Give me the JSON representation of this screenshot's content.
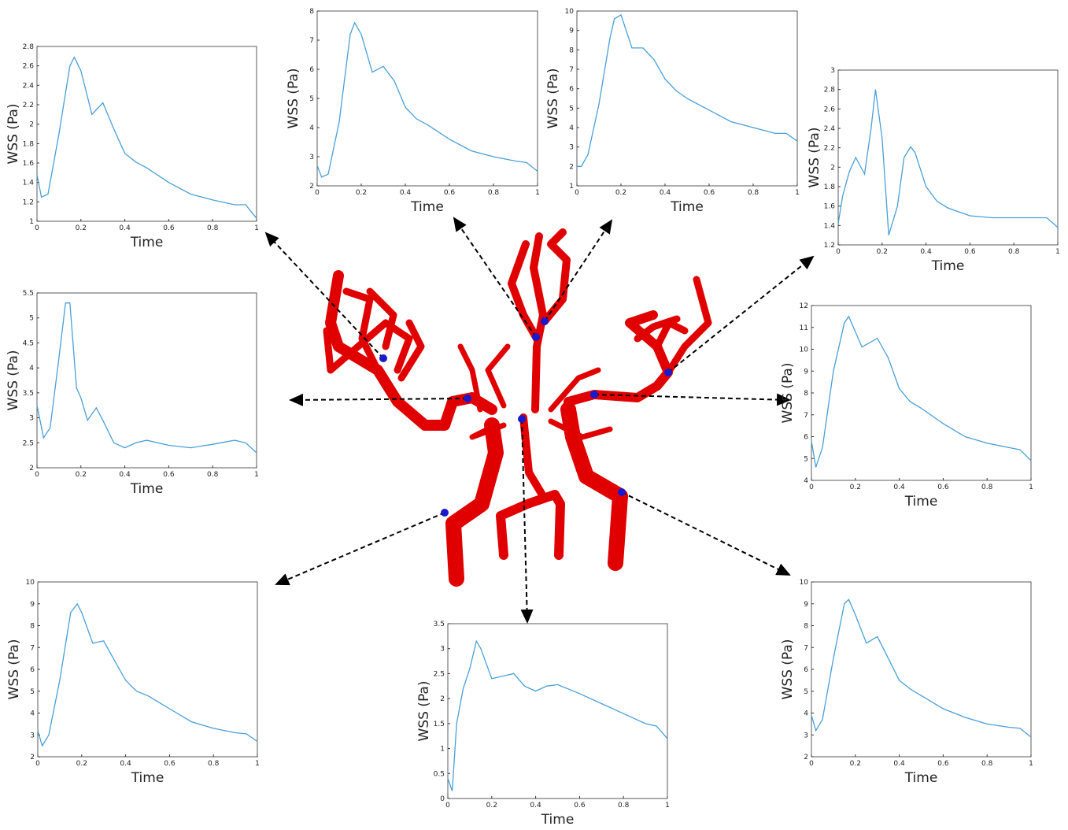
{
  "chart_data": [
    {
      "type": "line",
      "xlabel": "Time",
      "ylabel": "WSS (Pa)",
      "color": "#4a9fd8",
      "x": [
        0,
        0.02,
        0.05,
        0.1,
        0.15,
        0.17,
        0.2,
        0.25,
        0.3,
        0.35,
        0.4,
        0.45,
        0.5,
        0.6,
        0.7,
        0.8,
        0.9,
        0.95,
        1
      ],
      "values": [
        1.48,
        1.25,
        1.28,
        1.9,
        2.6,
        2.69,
        2.55,
        2.1,
        2.22,
        1.95,
        1.7,
        1.61,
        1.55,
        1.4,
        1.28,
        1.22,
        1.17,
        1.17,
        1.03
      ],
      "xlim": [
        0,
        1
      ],
      "xticks": [
        0,
        0.2,
        0.4,
        0.6,
        0.8,
        1
      ],
      "ylim": [
        1,
        2.8
      ],
      "yticks": [
        1,
        1.2,
        1.4,
        1.6,
        1.8,
        2,
        2.2,
        2.4,
        2.6,
        2.8
      ]
    },
    {
      "type": "line",
      "xlabel": "Time",
      "ylabel": "WSS (Pa)",
      "color": "#4a9fd8",
      "x": [
        0,
        0.02,
        0.05,
        0.1,
        0.15,
        0.17,
        0.2,
        0.25,
        0.3,
        0.35,
        0.4,
        0.45,
        0.5,
        0.6,
        0.7,
        0.8,
        0.9,
        0.95,
        1
      ],
      "values": [
        2.7,
        2.3,
        2.4,
        4.2,
        7.2,
        7.6,
        7.2,
        5.9,
        6.1,
        5.6,
        4.7,
        4.3,
        4.1,
        3.6,
        3.2,
        3.0,
        2.85,
        2.8,
        2.5
      ],
      "xlim": [
        0,
        1
      ],
      "xticks": [
        0,
        0.2,
        0.4,
        0.6,
        0.8,
        1
      ],
      "ylim": [
        2,
        8
      ],
      "yticks": [
        2,
        3,
        4,
        5,
        6,
        7,
        8
      ]
    },
    {
      "type": "line",
      "xlabel": "Time",
      "ylabel": "WSS (Pa)",
      "color": "#4a9fd8",
      "x": [
        0,
        0.02,
        0.05,
        0.1,
        0.15,
        0.17,
        0.2,
        0.25,
        0.3,
        0.35,
        0.4,
        0.45,
        0.5,
        0.6,
        0.7,
        0.8,
        0.9,
        0.95,
        1
      ],
      "values": [
        2.0,
        2.0,
        2.6,
        5.2,
        8.6,
        9.6,
        9.8,
        8.1,
        8.1,
        7.5,
        6.5,
        5.9,
        5.5,
        4.9,
        4.3,
        4.0,
        3.7,
        3.7,
        3.3
      ],
      "xlim": [
        0,
        1
      ],
      "xticks": [
        0,
        0.2,
        0.4,
        0.6,
        0.8,
        1
      ],
      "ylim": [
        1,
        10
      ],
      "yticks": [
        1,
        2,
        3,
        4,
        5,
        6,
        7,
        8,
        9,
        10
      ]
    },
    {
      "type": "line",
      "xlabel": "Time",
      "ylabel": "WSS (Pa)",
      "color": "#4a9fd8",
      "x": [
        0,
        0.02,
        0.05,
        0.08,
        0.12,
        0.15,
        0.17,
        0.2,
        0.23,
        0.27,
        0.3,
        0.33,
        0.35,
        0.4,
        0.45,
        0.5,
        0.6,
        0.7,
        0.8,
        0.9,
        0.95,
        1
      ],
      "values": [
        1.42,
        1.7,
        1.95,
        2.1,
        1.93,
        2.4,
        2.8,
        2.3,
        1.3,
        1.6,
        2.1,
        2.21,
        2.15,
        1.8,
        1.65,
        1.58,
        1.5,
        1.48,
        1.48,
        1.48,
        1.48,
        1.38
      ],
      "xlim": [
        0,
        1
      ],
      "xticks": [
        0,
        0.2,
        0.4,
        0.6,
        0.8,
        1
      ],
      "ylim": [
        1.2,
        3
      ],
      "yticks": [
        1.2,
        1.4,
        1.6,
        1.8,
        2,
        2.2,
        2.4,
        2.6,
        2.8,
        3
      ]
    },
    {
      "type": "line",
      "xlabel": "Time",
      "ylabel": "WSS (Pa)",
      "color": "#4a9fd8",
      "x": [
        0,
        0.03,
        0.06,
        0.1,
        0.13,
        0.15,
        0.18,
        0.2,
        0.23,
        0.27,
        0.3,
        0.35,
        0.4,
        0.45,
        0.5,
        0.6,
        0.7,
        0.8,
        0.9,
        0.95,
        1
      ],
      "values": [
        3.25,
        2.6,
        2.8,
        4.2,
        5.3,
        5.3,
        3.6,
        3.4,
        2.95,
        3.2,
        2.95,
        2.5,
        2.4,
        2.5,
        2.55,
        2.45,
        2.4,
        2.47,
        2.55,
        2.5,
        2.3
      ],
      "xlim": [
        0,
        1
      ],
      "xticks": [
        0,
        0.2,
        0.4,
        0.6,
        0.8,
        1
      ],
      "ylim": [
        2,
        5.5
      ],
      "yticks": [
        2,
        2.5,
        3,
        3.5,
        4,
        4.5,
        5,
        5.5
      ]
    },
    {
      "type": "line",
      "xlabel": "Time",
      "ylabel": "WSS (Pa)",
      "color": "#4a9fd8",
      "x": [
        0,
        0.02,
        0.05,
        0.1,
        0.15,
        0.17,
        0.2,
        0.23,
        0.3,
        0.35,
        0.4,
        0.45,
        0.5,
        0.6,
        0.7,
        0.8,
        0.9,
        0.95,
        1
      ],
      "values": [
        5.8,
        4.6,
        5.5,
        9,
        11.2,
        11.5,
        10.8,
        10.1,
        10.5,
        9.6,
        8.2,
        7.6,
        7.3,
        6.6,
        6.0,
        5.7,
        5.5,
        5.4,
        4.9
      ],
      "xlim": [
        0,
        1
      ],
      "xticks": [
        0,
        0.2,
        0.4,
        0.6,
        0.8,
        1
      ],
      "ylim": [
        4,
        12
      ],
      "yticks": [
        4,
        5,
        6,
        7,
        8,
        9,
        10,
        11,
        12
      ]
    },
    {
      "type": "line",
      "xlabel": "Time",
      "ylabel": "WSS (Pa)",
      "color": "#4a9fd8",
      "x": [
        0,
        0.02,
        0.05,
        0.1,
        0.15,
        0.18,
        0.2,
        0.25,
        0.3,
        0.35,
        0.4,
        0.45,
        0.5,
        0.6,
        0.7,
        0.8,
        0.9,
        0.95,
        1
      ],
      "values": [
        3.2,
        2.5,
        3.0,
        5.5,
        8.6,
        9.0,
        8.6,
        7.2,
        7.3,
        6.4,
        5.5,
        5.0,
        4.8,
        4.2,
        3.6,
        3.3,
        3.1,
        3.05,
        2.7
      ],
      "xlim": [
        0,
        1
      ],
      "xticks": [
        0,
        0.2,
        0.4,
        0.6,
        0.8,
        1
      ],
      "ylim": [
        2,
        10
      ],
      "yticks": [
        2,
        3,
        4,
        5,
        6,
        7,
        8,
        9,
        10
      ]
    },
    {
      "type": "line",
      "xlabel": "Time",
      "ylabel": "WSS (Pa)",
      "color": "#4a9fd8",
      "x": [
        0,
        0.02,
        0.04,
        0.07,
        0.1,
        0.13,
        0.15,
        0.2,
        0.25,
        0.3,
        0.35,
        0.4,
        0.45,
        0.5,
        0.6,
        0.7,
        0.8,
        0.9,
        0.95,
        1
      ],
      "values": [
        0.4,
        0.15,
        1.5,
        2.2,
        2.6,
        3.15,
        3.0,
        2.4,
        2.45,
        2.5,
        2.25,
        2.15,
        2.25,
        2.28,
        2.1,
        1.9,
        1.7,
        1.5,
        1.45,
        1.2
      ],
      "xlim": [
        0,
        1
      ],
      "xticks": [
        0,
        0.2,
        0.4,
        0.6,
        0.8,
        1
      ],
      "ylim": [
        0,
        3.5
      ],
      "yticks": [
        0,
        0.5,
        1,
        1.5,
        2,
        2.5,
        3,
        3.5
      ]
    },
    {
      "type": "line",
      "xlabel": "Time",
      "ylabel": "WSS (Pa)",
      "color": "#4a9fd8",
      "x": [
        0,
        0.02,
        0.05,
        0.1,
        0.15,
        0.17,
        0.2,
        0.25,
        0.3,
        0.35,
        0.4,
        0.45,
        0.5,
        0.6,
        0.7,
        0.8,
        0.9,
        0.95,
        1
      ],
      "values": [
        3.9,
        3.2,
        3.7,
        6.5,
        9.0,
        9.2,
        8.5,
        7.2,
        7.5,
        6.5,
        5.5,
        5.1,
        4.8,
        4.2,
        3.8,
        3.5,
        3.35,
        3.3,
        2.9
      ],
      "xlim": [
        0,
        1
      ],
      "xticks": [
        0,
        0.2,
        0.4,
        0.6,
        0.8,
        1
      ],
      "ylim": [
        2,
        10
      ],
      "yticks": [
        2,
        3,
        4,
        5,
        6,
        7,
        8,
        9,
        10
      ]
    }
  ]
}
